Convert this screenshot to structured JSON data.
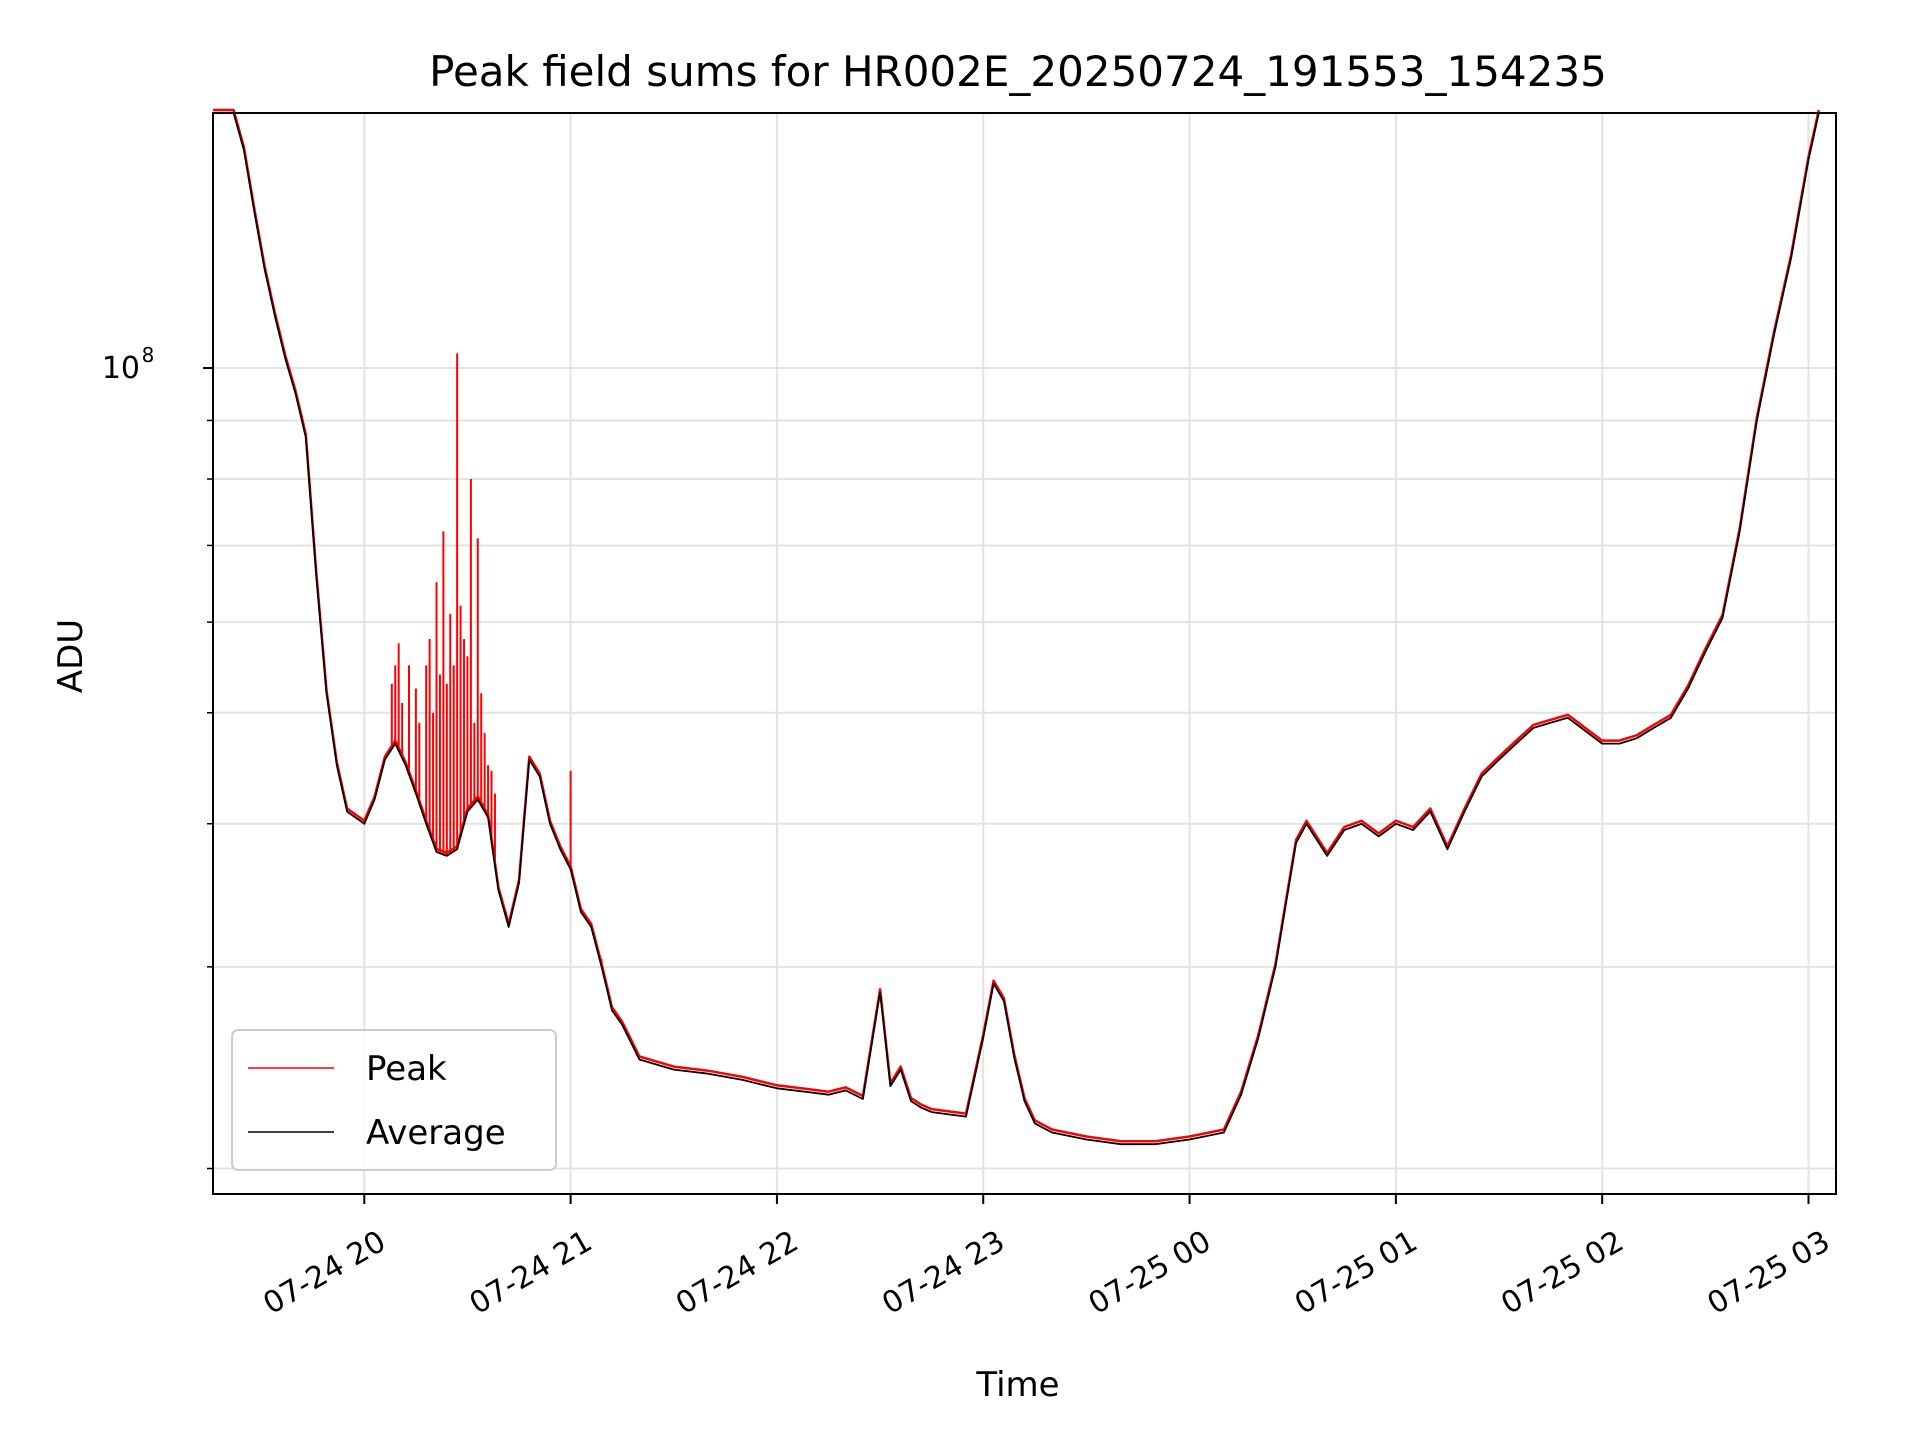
{
  "chart_data": {
    "type": "line",
    "title": "Peak field sums for HR002E_20250724_191553_154235",
    "xlabel": "Time",
    "ylabel": "ADU",
    "y_scale": "log",
    "ylim": [
      19000000,
      167000000
    ],
    "xlim": [
      "2025-07-24 19:16:00",
      "2025-07-25 03:08:00"
    ],
    "grid": true,
    "legend_position": "lower-left",
    "x_tick_labels": [
      "07-24 20",
      "07-24 21",
      "07-24 22",
      "07-24 23",
      "07-25 00",
      "07-25 01",
      "07-25 02",
      "07-25 03"
    ],
    "x_ticks": [
      "2025-07-24 20:00:00",
      "2025-07-24 21:00:00",
      "2025-07-24 22:00:00",
      "2025-07-24 23:00:00",
      "2025-07-25 00:00:00",
      "2025-07-25 01:00:00",
      "2025-07-25 02:00:00",
      "2025-07-25 03:00:00"
    ],
    "y_tick_label_base": "10",
    "y_tick_label_exponent": "8",
    "series": [
      {
        "name": "Average",
        "color": "#000000",
        "x": [
          "2025-07-24 19:16:00",
          "2025-07-24 19:19:00",
          "2025-07-24 19:22:00",
          "2025-07-24 19:25:00",
          "2025-07-24 19:28:00",
          "2025-07-24 19:31:00",
          "2025-07-24 19:34:00",
          "2025-07-24 19:37:00",
          "2025-07-24 19:40:00",
          "2025-07-24 19:43:00",
          "2025-07-24 19:46:00",
          "2025-07-24 19:49:00",
          "2025-07-24 19:52:00",
          "2025-07-24 19:55:00",
          "2025-07-24 20:00:00",
          "2025-07-24 20:03:00",
          "2025-07-24 20:06:00",
          "2025-07-24 20:09:00",
          "2025-07-24 20:12:00",
          "2025-07-24 20:15:00",
          "2025-07-24 20:18:00",
          "2025-07-24 20:21:00",
          "2025-07-24 20:24:00",
          "2025-07-24 20:27:00",
          "2025-07-24 20:30:00",
          "2025-07-24 20:33:00",
          "2025-07-24 20:36:00",
          "2025-07-24 20:39:00",
          "2025-07-24 20:42:00",
          "2025-07-24 20:45:00",
          "2025-07-24 20:48:00",
          "2025-07-24 20:51:00",
          "2025-07-24 20:54:00",
          "2025-07-24 20:57:00",
          "2025-07-24 21:00:00",
          "2025-07-24 21:03:00",
          "2025-07-24 21:06:00",
          "2025-07-24 21:09:00",
          "2025-07-24 21:12:00",
          "2025-07-24 21:15:00",
          "2025-07-24 21:20:00",
          "2025-07-24 21:30:00",
          "2025-07-24 21:40:00",
          "2025-07-24 21:50:00",
          "2025-07-24 22:00:00",
          "2025-07-24 22:10:00",
          "2025-07-24 22:15:00",
          "2025-07-24 22:20:00",
          "2025-07-24 22:25:00",
          "2025-07-24 22:30:00",
          "2025-07-24 22:33:00",
          "2025-07-24 22:36:00",
          "2025-07-24 22:39:00",
          "2025-07-24 22:42:00",
          "2025-07-24 22:45:00",
          "2025-07-24 22:50:00",
          "2025-07-24 22:55:00",
          "2025-07-24 23:00:00",
          "2025-07-24 23:03:00",
          "2025-07-24 23:06:00",
          "2025-07-24 23:09:00",
          "2025-07-24 23:12:00",
          "2025-07-24 23:15:00",
          "2025-07-24 23:20:00",
          "2025-07-24 23:30:00",
          "2025-07-24 23:40:00",
          "2025-07-24 23:50:00",
          "2025-07-25 00:00:00",
          "2025-07-25 00:10:00",
          "2025-07-25 00:15:00",
          "2025-07-25 00:20:00",
          "2025-07-25 00:25:00",
          "2025-07-25 00:28:00",
          "2025-07-25 00:31:00",
          "2025-07-25 00:34:00",
          "2025-07-25 00:40:00",
          "2025-07-25 00:45:00",
          "2025-07-25 00:50:00",
          "2025-07-25 00:55:00",
          "2025-07-25 01:00:00",
          "2025-07-25 01:05:00",
          "2025-07-25 01:10:00",
          "2025-07-25 01:15:00",
          "2025-07-25 01:20:00",
          "2025-07-25 01:25:00",
          "2025-07-25 01:30:00",
          "2025-07-25 01:35:00",
          "2025-07-25 01:40:00",
          "2025-07-25 01:45:00",
          "2025-07-25 01:50:00",
          "2025-07-25 02:00:00",
          "2025-07-25 02:05:00",
          "2025-07-25 02:10:00",
          "2025-07-25 02:15:00",
          "2025-07-25 02:20:00",
          "2025-07-25 02:25:00",
          "2025-07-25 02:30:00",
          "2025-07-25 02:35:00",
          "2025-07-25 02:40:00",
          "2025-07-25 02:45:00",
          "2025-07-25 02:50:00",
          "2025-07-25 02:55:00",
          "2025-07-25 03:00:00",
          "2025-07-25 03:03:00"
        ],
        "y": [
          167000000,
          167000000,
          167000000,
          155000000,
          137000000,
          122000000,
          111000000,
          102000000,
          95000000,
          87000000,
          66000000,
          52000000,
          45000000,
          41000000,
          40000000,
          42000000,
          45500000,
          47000000,
          45000000,
          42500000,
          40000000,
          37800000,
          37500000,
          38000000,
          41000000,
          42000000,
          40500000,
          35000000,
          32500000,
          35500000,
          45500000,
          44000000,
          40000000,
          38000000,
          36500000,
          33500000,
          32500000,
          30000000,
          27500000,
          26700000,
          24900000,
          24400000,
          24200000,
          23900000,
          23500000,
          23300000,
          23200000,
          23400000,
          23000000,
          28500000,
          23600000,
          24400000,
          22900000,
          22600000,
          22400000,
          22300000,
          22200000,
          26000000,
          29000000,
          28000000,
          25000000,
          22900000,
          21900000,
          21500000,
          21200000,
          21000000,
          21000000,
          21200000,
          21500000,
          23200000,
          26000000,
          30000000,
          34000000,
          38500000,
          40000000,
          37500000,
          39500000,
          40000000,
          39000000,
          40000000,
          39500000,
          41000000,
          38000000,
          41000000,
          44000000,
          45500000,
          47000000,
          48500000,
          49000000,
          49500000,
          47000000,
          47000000,
          47500000,
          48500000,
          49500000,
          52500000,
          56500000,
          60500000,
          72000000,
          90000000,
          107000000,
          125000000,
          152000000,
          167000000
        ]
      },
      {
        "name": "Peak",
        "color": "#ff0000",
        "x": [
          "2025-07-24 20:08:00",
          "2025-07-24 20:09:00",
          "2025-07-24 20:10:00",
          "2025-07-24 20:11:00",
          "2025-07-24 20:13:00",
          "2025-07-24 20:15:00",
          "2025-07-24 20:16:00",
          "2025-07-24 20:18:00",
          "2025-07-24 20:19:00",
          "2025-07-24 20:20:00",
          "2025-07-24 20:21:00",
          "2025-07-24 20:22:00",
          "2025-07-24 20:23:00",
          "2025-07-24 20:24:00",
          "2025-07-24 20:25:00",
          "2025-07-24 20:26:00",
          "2025-07-24 20:27:00",
          "2025-07-24 20:28:00",
          "2025-07-24 20:29:00",
          "2025-07-24 20:30:00",
          "2025-07-24 20:31:00",
          "2025-07-24 20:32:00",
          "2025-07-24 20:33:00",
          "2025-07-24 20:34:00",
          "2025-07-24 20:35:00",
          "2025-07-24 20:36:00",
          "2025-07-24 20:37:00",
          "2025-07-24 20:38:00",
          "2025-07-24 21:00:00",
          "2025-07-24 21:09:00"
        ],
        "y": [
          53000000,
          55000000,
          57500000,
          51000000,
          55000000,
          52500000,
          49000000,
          55000000,
          58000000,
          50000000,
          65000000,
          54000000,
          72000000,
          53000000,
          61000000,
          55000000,
          103000000,
          62000000,
          58000000,
          56000000,
          80000000,
          49000000,
          71000000,
          52000000,
          48000000,
          45000000,
          44500000,
          42500000,
          44500000,
          30500000
        ]
      }
    ]
  }
}
